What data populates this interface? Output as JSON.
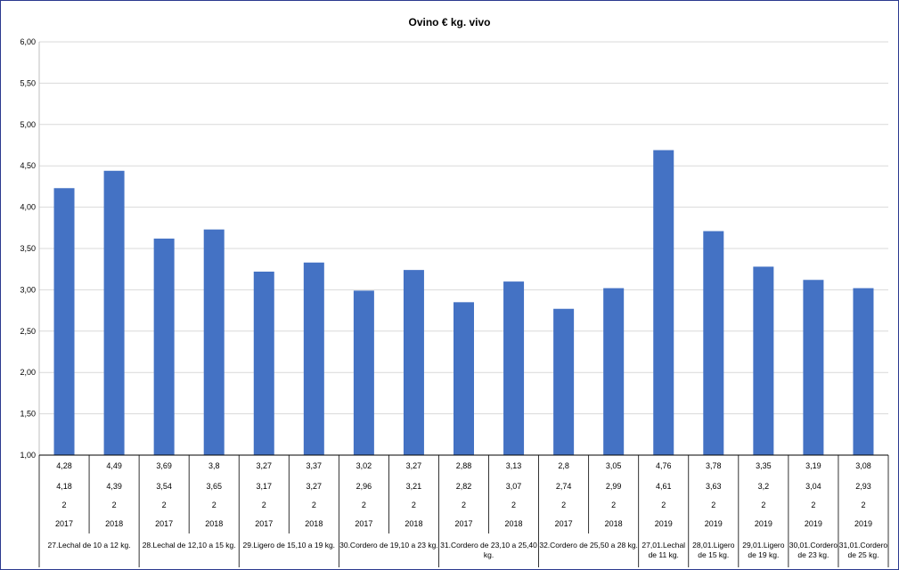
{
  "chart_data": {
    "type": "bar",
    "title": "Ovino € kg. vivo",
    "ylim": [
      1.0,
      6.0
    ],
    "yticks": [
      "1,00",
      "1,50",
      "2,00",
      "2,50",
      "3,00",
      "3,50",
      "4,00",
      "4,50",
      "5,00",
      "5,50",
      "6,00"
    ],
    "grid": true,
    "bar_color": "#4472c4",
    "values": [
      4.23,
      4.44,
      3.62,
      3.73,
      3.22,
      3.33,
      2.99,
      3.24,
      2.85,
      3.1,
      2.77,
      3.02,
      4.69,
      3.71,
      3.28,
      3.12,
      3.02
    ],
    "table_rows": [
      [
        "4,28",
        "4,49",
        "3,69",
        "3,8",
        "3,27",
        "3,37",
        "3,02",
        "3,27",
        "2,88",
        "3,13",
        "2,8",
        "3,05",
        "4,76",
        "3,78",
        "3,35",
        "3,19",
        "3,08"
      ],
      [
        "4,18",
        "4,39",
        "3,54",
        "3,65",
        "3,17",
        "3,27",
        "2,96",
        "3,21",
        "2,82",
        "3,07",
        "2,74",
        "2,99",
        "4,61",
        "3,63",
        "3,2",
        "3,04",
        "2,93"
      ],
      [
        "2",
        "2",
        "2",
        "2",
        "2",
        "2",
        "2",
        "2",
        "2",
        "2",
        "2",
        "2",
        "2",
        "2",
        "2",
        "2",
        "2"
      ],
      [
        "2017",
        "2018",
        "2017",
        "2018",
        "2017",
        "2018",
        "2017",
        "2018",
        "2017",
        "2018",
        "2017",
        "2018",
        "2019",
        "2019",
        "2019",
        "2019",
        "2019"
      ]
    ],
    "groups": [
      {
        "label": [
          "27.Lechal de 10 a 12 kg."
        ],
        "span": 2
      },
      {
        "label": [
          "28.Lechal de 12,10 a 15 kg."
        ],
        "span": 2
      },
      {
        "label": [
          "29.Ligero de 15,10 a 19 kg."
        ],
        "span": 2
      },
      {
        "label": [
          "30.Cordero de 19,10 a 23 kg."
        ],
        "span": 2
      },
      {
        "label": [
          "31.Cordero de 23,10 a 25,40",
          "kg."
        ],
        "span": 2
      },
      {
        "label": [
          "32.Cordero de 25,50 a 28 kg."
        ],
        "span": 2
      },
      {
        "label": [
          "27,01.Lechal",
          "de 11 kg."
        ],
        "span": 1
      },
      {
        "label": [
          "28,01.Ligero",
          "de 15 kg."
        ],
        "span": 1
      },
      {
        "label": [
          "29,01.Ligero",
          "de 19 kg."
        ],
        "span": 1
      },
      {
        "label": [
          "30,01.Cordero",
          "de 23 kg."
        ],
        "span": 1
      },
      {
        "label": [
          "31,01.Cordero",
          "de 25 kg."
        ],
        "span": 1
      }
    ]
  }
}
